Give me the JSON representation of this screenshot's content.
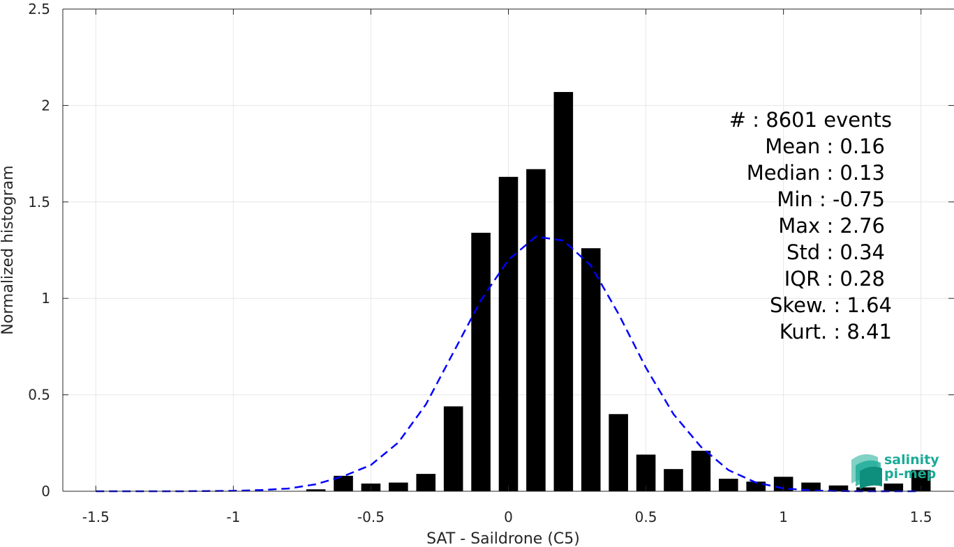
{
  "chart_data": {
    "type": "bar",
    "xlabel": "SAT - Saildrone (C5)",
    "ylabel": "Normalized histogram",
    "xlim": [
      -1.62,
      1.62
    ],
    "ylim": [
      0,
      2.5
    ],
    "xticks": [
      -1.5,
      -1,
      -0.5,
      0,
      0.5,
      1,
      1.5
    ],
    "xtick_labels": [
      "-1.5",
      "-1",
      "-0.5",
      "0",
      "0.5",
      "1",
      "1.5"
    ],
    "yticks": [
      0,
      0.5,
      1,
      1.5,
      2,
      2.5
    ],
    "ytick_labels": [
      "0",
      "0.5",
      "1",
      "1.5",
      "2",
      "2.5"
    ],
    "grid": true,
    "bin_width": 0.1,
    "bars": {
      "x": [
        -1.5,
        -1.4,
        -1.3,
        -1.2,
        -1.1,
        -1.0,
        -0.9,
        -0.8,
        -0.7,
        -0.6,
        -0.5,
        -0.4,
        -0.3,
        -0.2,
        -0.1,
        0.0,
        0.1,
        0.2,
        0.3,
        0.4,
        0.5,
        0.6,
        0.7,
        0.8,
        0.9,
        1.0,
        1.1,
        1.2,
        1.3,
        1.4,
        1.5
      ],
      "values": [
        0,
        0,
        0,
        0,
        0,
        0,
        0,
        0,
        0.01,
        0.08,
        0.04,
        0.045,
        0.09,
        0.44,
        1.34,
        1.63,
        1.67,
        2.07,
        1.26,
        0.4,
        0.19,
        0.115,
        0.21,
        0.065,
        0.05,
        0.075,
        0.045,
        0.03,
        0.02,
        0.04,
        0.11
      ],
      "color": "#000000"
    },
    "fit_curve": {
      "style": "dashed",
      "color": "#0000ff",
      "x": [
        -1.5,
        -1.4,
        -1.3,
        -1.2,
        -1.1,
        -1.0,
        -0.9,
        -0.8,
        -0.7,
        -0.6,
        -0.5,
        -0.4,
        -0.3,
        -0.2,
        -0.1,
        0.0,
        0.1,
        0.2,
        0.3,
        0.4,
        0.5,
        0.6,
        0.7,
        0.8,
        0.9,
        1.0,
        1.1,
        1.2,
        1.3,
        1.4,
        1.5
      ],
      "y": [
        0.0,
        0.0,
        0.0,
        0.0,
        0.001,
        0.002,
        0.006,
        0.014,
        0.036,
        0.078,
        0.136,
        0.253,
        0.45,
        0.72,
        0.99,
        1.2,
        1.32,
        1.3,
        1.17,
        0.92,
        0.64,
        0.4,
        0.23,
        0.11,
        0.045,
        0.015,
        0.004,
        0.001,
        0.0,
        0.0,
        0.0
      ]
    },
    "stats": [
      {
        "label": "#  : 8601 events"
      },
      {
        "label": "Mean : 0.16"
      },
      {
        "label": "Median : 0.13"
      },
      {
        "label": "Min : -0.75"
      },
      {
        "label": "Max : 2.76"
      },
      {
        "label": "Std : 0.34"
      },
      {
        "label": "IQR : 0.28"
      },
      {
        "label": "Skew. : 1.64"
      },
      {
        "label": "Kurt. : 8.41"
      }
    ]
  },
  "logo": {
    "line1": "salinity",
    "line2": "pi-mep",
    "color": "#1aab96"
  }
}
